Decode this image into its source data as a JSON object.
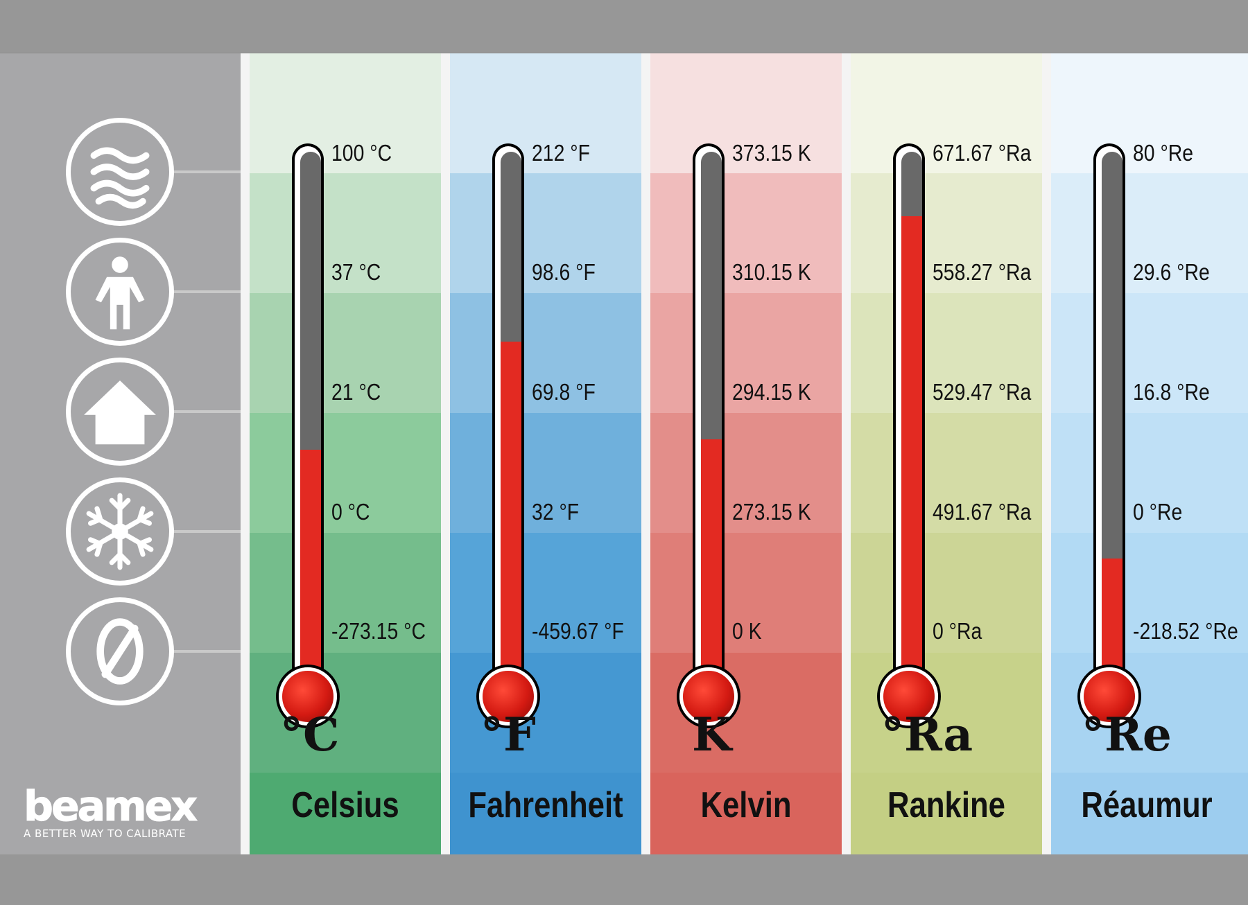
{
  "brand": {
    "name": "beamex",
    "tagline": "A BETTER WAY TO CALIBRATE"
  },
  "reference_icons": [
    "steam-icon",
    "person-icon",
    "house-icon",
    "snowflake-icon",
    "zero-icon"
  ],
  "scales": [
    {
      "id": "celsius",
      "symbol": "°C",
      "name": "Celsius",
      "ticks": [
        "100 °C",
        "37 °C",
        "21 °C",
        "0 °C",
        "-273.15 °C"
      ],
      "fill_fraction": 0.4,
      "bands": [
        "#e3efe3",
        "#c4e1c8",
        "#a8d3b0",
        "#8ccb9c",
        "#75bd8c",
        "#60b07f",
        "#4eaa71"
      ]
    },
    {
      "id": "fahrenheit",
      "symbol": "°F",
      "name": "Fahrenheit",
      "ticks": [
        "212 °F",
        "98.6 °F",
        "69.8 °F",
        "32 °F",
        "-459.67 °F"
      ],
      "fill_fraction": 0.6,
      "bands": [
        "#d6e8f4",
        "#b0d4eb",
        "#8ec1e3",
        "#6fb0dc",
        "#56a4d8",
        "#4598d2",
        "#3f93cf"
      ]
    },
    {
      "id": "kelvin",
      "symbol": "K",
      "name": "Kelvin",
      "ticks": [
        "373.15 K",
        "310.15 K",
        "294.15 K",
        "273.15 K",
        "0 K"
      ],
      "fill_fraction": 0.42,
      "bands": [
        "#f6e0e0",
        "#f0bcbc",
        "#eaa5a3",
        "#e38e8a",
        "#df7e78",
        "#da6c64",
        "#d9645c"
      ]
    },
    {
      "id": "rankine",
      "symbol": "°Ra",
      "name": "Rankine",
      "ticks": [
        "671.67 °Ra",
        "558.27 °Ra",
        "529.47 °Ra",
        "491.67 °Ra",
        "0 °Ra"
      ],
      "fill_fraction": 0.83,
      "bands": [
        "#f2f5e6",
        "#e6ebcf",
        "#dce4bb",
        "#d4dca6",
        "#ccd596",
        "#c7d28a",
        "#c4cf84"
      ]
    },
    {
      "id": "reaumur",
      "symbol": "°Re",
      "name": "Réaumur",
      "ticks": [
        "80 °Re",
        "29.6 °Re",
        "16.8 °Re",
        "0 °Re",
        "-218.52 °Re"
      ],
      "fill_fraction": 0.2,
      "bands": [
        "#eef6fc",
        "#dbedf9",
        "#cce6f8",
        "#bfe0f6",
        "#b2daf4",
        "#a8d4f2",
        "#9dcdef"
      ]
    }
  ]
}
